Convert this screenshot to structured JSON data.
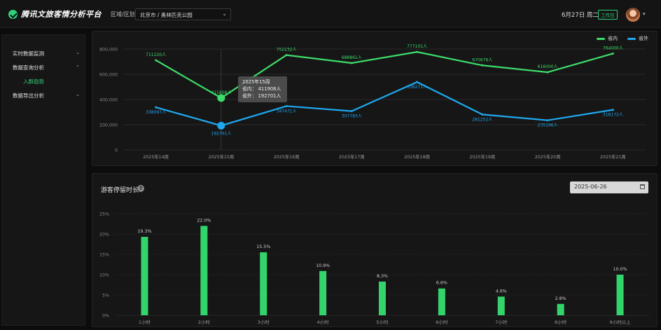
{
  "header": {
    "app_title": "腾讯文旅客情分析平台",
    "region_label": "区域/区划",
    "region_value": "北京市 / 奥林匹克公园",
    "date": "6月27日 周二",
    "day_type": "工作日"
  },
  "sidebar": {
    "items": [
      {
        "label": "实时数据监测",
        "chevron": "chevron-down-icon"
      },
      {
        "label": "数据查询分析",
        "chevron": "chevron-up-icon"
      },
      {
        "label": "入群趋势"
      },
      {
        "label": "数据导出分析",
        "chevron": "chevron-down-icon"
      }
    ]
  },
  "colors": {
    "accent": "#2fd27a",
    "series_in": "#3ddc6a",
    "series_out": "#1fa8f0",
    "panel_bg": "#161616"
  },
  "tooltip": {
    "title": "2025年15周",
    "line1": "省内： 411908人",
    "line2": "省外： 192701人"
  },
  "bar_panel": {
    "title": "游客停留时长",
    "help_icon": "question-icon",
    "date_value": "2025-06-26",
    "date_icon": "calendar-icon"
  },
  "chart_data": [
    {
      "type": "line",
      "x": [
        "2025年14周",
        "2025年15周",
        "2025年16周",
        "2025年17周",
        "2025年18周",
        "2025年19周",
        "2025年20周",
        "2025年21周"
      ],
      "series": [
        {
          "name": "省内",
          "values": [
            711220,
            411908,
            752232,
            688861,
            777101,
            670676,
            616000,
            764000
          ],
          "labels": [
            "711220人",
            "411908人",
            "752232人",
            "688861人",
            "777101人",
            "670676人",
            "616000人",
            "764000人"
          ]
        },
        {
          "name": "省外",
          "values": [
            338097,
            192701,
            347471,
            307783,
            538271,
            281252,
            235196,
            318172
          ],
          "labels": [
            "338097人",
            "192701人",
            "347471人",
            "307783人",
            "538271人",
            "281252人",
            "235196人",
            "318172人"
          ]
        }
      ],
      "yticks": [
        "0",
        "200,000",
        "400,000",
        "600,000",
        "800,000"
      ],
      "ylim": [
        0,
        800000
      ],
      "highlight_index": 1,
      "grid": true,
      "legend": "top-right"
    },
    {
      "type": "bar",
      "categories": [
        "1小时",
        "2小时",
        "3小时",
        "4小时",
        "5小时",
        "6小时",
        "7小时",
        "8小时",
        "9小时以上"
      ],
      "values": [
        19.3,
        22.0,
        15.5,
        10.9,
        8.3,
        6.6,
        4.6,
        2.8,
        10.0
      ],
      "labels": [
        "19.3%",
        "22.0%",
        "15.5%",
        "10.9%",
        "8.3%",
        "6.6%",
        "4.6%",
        "2.8%",
        "10.0%"
      ],
      "yticks": [
        "0%",
        "5%",
        "10%",
        "15%",
        "20%",
        "25%"
      ],
      "ylim": [
        0,
        25
      ],
      "grid": true
    }
  ]
}
